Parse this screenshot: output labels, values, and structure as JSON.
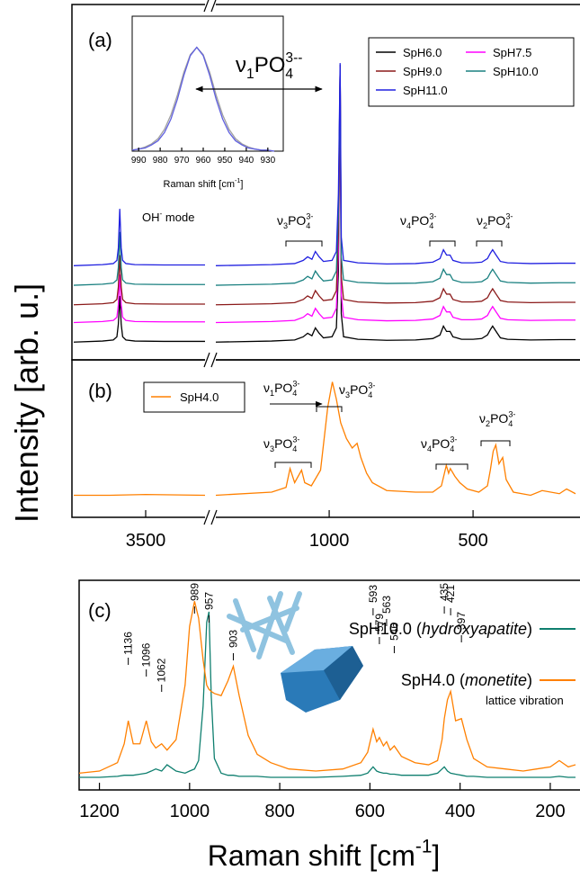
{
  "ylabel": "Intensity [arb. u.]",
  "chart_data": [
    {
      "type": "line",
      "panel_label": "(a)",
      "xlim_segments": [
        [
          3700,
          3335
        ],
        [
          1394,
          144
        ]
      ],
      "ylim": [
        0,
        100
      ],
      "x": [
        3700,
        3620,
        3590,
        3580,
        3576,
        3572,
        3568,
        3564,
        3555,
        3530,
        3450,
        3335,
        null,
        1394,
        1200,
        1120,
        1090,
        1075,
        1060,
        1048,
        1035,
        1020,
        990,
        975,
        968,
        962,
        958,
        950,
        900,
        800,
        700,
        640,
        615,
        603,
        592,
        580,
        570,
        540,
        500,
        470,
        450,
        440,
        432,
        420,
        405,
        380,
        300,
        200,
        144
      ],
      "series": [
        {
          "name": "SpH6.0",
          "color": "#000000",
          "values": [
            5,
            5.3,
            5.6,
            6.5,
            10,
            18,
            10,
            6.5,
            5.6,
            5.3,
            5.2,
            5.2,
            null,
            5,
            5.3,
            5.6,
            6.5,
            7.5,
            6.8,
            9,
            7.5,
            6.2,
            6.5,
            9,
            25,
            83,
            13,
            6.5,
            5.8,
            5.5,
            5.6,
            6,
            7,
            9.5,
            8,
            8,
            6.5,
            5.8,
            5.8,
            6,
            7,
            8.5,
            9.5,
            8,
            6.2,
            5.8,
            5.6,
            5.7,
            5.7
          ]
        },
        {
          "name": "SpH7.5",
          "color": "#ff00ff",
          "values": [
            10.5,
            10.8,
            11.1,
            12,
            15.5,
            24,
            15.5,
            12,
            11.1,
            10.8,
            10.7,
            10.7,
            null,
            10.5,
            10.8,
            11.1,
            12,
            13,
            12.3,
            14.5,
            13,
            11.7,
            12,
            14.5,
            30.5,
            82.5,
            18.5,
            12,
            11.3,
            11,
            11.1,
            11.5,
            12.5,
            15,
            13.5,
            13.5,
            12,
            11.3,
            11.3,
            11.5,
            12.5,
            14,
            15,
            13.5,
            11.7,
            11.3,
            11.1,
            11.2,
            11.2
          ]
        },
        {
          "name": "SpH9.0",
          "color": "#8b1a1a",
          "values": [
            15.5,
            15.8,
            16.1,
            17,
            20.5,
            29.5,
            20.5,
            17,
            16.1,
            15.8,
            15.7,
            15.7,
            null,
            15.5,
            15.8,
            16.1,
            17,
            18,
            17.3,
            19.5,
            18,
            16.7,
            17,
            19.5,
            35.5,
            82.5,
            23.5,
            17,
            16.3,
            16,
            16.1,
            16.5,
            17.5,
            20,
            18.5,
            18.5,
            17,
            16.3,
            16.3,
            16.5,
            17.5,
            19,
            20,
            18.5,
            16.7,
            16.3,
            16.1,
            16.2,
            16.2
          ]
        },
        {
          "name": "SpH10.0",
          "color": "#1a8080",
          "values": [
            21,
            21.3,
            21.6,
            22.5,
            26,
            36,
            26,
            22.5,
            21.6,
            21.3,
            21.2,
            21.2,
            null,
            21,
            21.3,
            21.6,
            22.5,
            23.5,
            22.8,
            25,
            23.5,
            22.2,
            22.5,
            25,
            41,
            82,
            29,
            22.5,
            21.8,
            21.5,
            21.6,
            22,
            23,
            25.5,
            24,
            24,
            22.5,
            21.8,
            21.8,
            22,
            23,
            24.5,
            25.5,
            24,
            22.2,
            21.8,
            21.6,
            21.7,
            21.7
          ]
        },
        {
          "name": "SpH11.0",
          "color": "#2020e0",
          "values": [
            26.5,
            26.8,
            27.1,
            28,
            31.5,
            42.5,
            31.5,
            28,
            27.1,
            26.8,
            26.7,
            26.7,
            null,
            26.5,
            26.8,
            27.1,
            28,
            29,
            28.3,
            30.5,
            29,
            27.7,
            28,
            30.5,
            46.5,
            83.5,
            34.5,
            28,
            27.3,
            27,
            27.1,
            27.5,
            28.5,
            31,
            29.5,
            29.5,
            28,
            27.3,
            27.3,
            27.5,
            28.5,
            30,
            31,
            29.5,
            27.7,
            27.3,
            27.1,
            27.2,
            27.2
          ]
        }
      ],
      "annotations": [
        [
          "ν",
          "1",
          "PO",
          "4",
          "3--"
        ],
        [
          "OH",
          "-",
          " mode"
        ],
        [
          "ν",
          "3",
          "PO",
          "4",
          "3-"
        ],
        [
          "ν",
          "4",
          "PO",
          "4",
          "3-"
        ],
        [
          "ν",
          "2",
          "PO",
          "4",
          "3-"
        ]
      ]
    },
    {
      "type": "line",
      "panel_label": "(b)",
      "xlim_segments": [
        [
          3700,
          3335
        ],
        [
          1394,
          144
        ]
      ],
      "ylim": [
        0,
        100
      ],
      "xticks": [
        3500,
        1000,
        500
      ],
      "x": [
        3700,
        3600,
        3500,
        3335,
        null,
        1394,
        1200,
        1150,
        1136,
        1120,
        1096,
        1085,
        1062,
        1030,
        1005,
        989,
        975,
        960,
        940,
        920,
        903,
        890,
        870,
        850,
        800,
        700,
        640,
        610,
        593,
        585,
        579,
        563,
        546,
        520,
        480,
        450,
        440,
        430,
        421,
        410,
        397,
        385,
        360,
        300,
        260,
        200,
        175,
        144
      ],
      "series": [
        {
          "name": "SpH4.0",
          "color": "#ff8000",
          "values": [
            14,
            14,
            14.5,
            14,
            null,
            14,
            16,
            19,
            31,
            22,
            30,
            22,
            20,
            30,
            70,
            86,
            75,
            60,
            50,
            44,
            47,
            38,
            28,
            22,
            17,
            16,
            16,
            20,
            33,
            28,
            31,
            26,
            22,
            18,
            16,
            20,
            30,
            42,
            46,
            34,
            38,
            24,
            16,
            14,
            17,
            15,
            18,
            15
          ]
        }
      ],
      "annotations": [
        [
          "ν",
          "1",
          "PO",
          "4",
          "3-"
        ],
        [
          "ν",
          "3",
          "PO",
          "4",
          "3-"
        ],
        [
          "ν",
          "3",
          "PO",
          "4",
          "3-"
        ],
        [
          "ν",
          "4",
          "PO",
          "4",
          "3-"
        ],
        [
          "ν",
          "2",
          "PO",
          "4",
          "3-"
        ]
      ]
    },
    {
      "type": "line",
      "xlim": [
        993,
        927
      ],
      "ylim": [
        0,
        1.3
      ],
      "xticks": [
        990,
        980,
        970,
        960,
        950,
        940,
        930
      ],
      "xlabel": [
        "Raman shift [cm",
        "-1",
        "]"
      ],
      "x": [
        993,
        990,
        987,
        984,
        981,
        978,
        975,
        972,
        969,
        966,
        963,
        960,
        957,
        954,
        951,
        948,
        945,
        942,
        939,
        936,
        933,
        930,
        927
      ],
      "series": [
        {
          "color": "#a0a0a0",
          "values": [
            0.01,
            0.02,
            0.04,
            0.07,
            0.12,
            0.21,
            0.35,
            0.54,
            0.76,
            0.93,
            1,
            0.93,
            0.76,
            0.54,
            0.35,
            0.21,
            0.12,
            0.07,
            0.04,
            0.02,
            0.01,
            0.01,
            0
          ]
        },
        {
          "color": "#6060e0",
          "values": [
            0.01,
            0.02,
            0.03,
            0.06,
            0.1,
            0.18,
            0.31,
            0.5,
            0.73,
            0.92,
            1,
            0.92,
            0.73,
            0.5,
            0.31,
            0.18,
            0.1,
            0.06,
            0.03,
            0.02,
            0.01,
            0.01,
            0
          ]
        }
      ]
    },
    {
      "type": "line",
      "panel_label": "(c)",
      "xlim": [
        1245,
        144
      ],
      "ylim": [
        0,
        100
      ],
      "xticks": [
        1200,
        1000,
        800,
        600,
        400,
        200
      ],
      "xlabel": [
        "Raman shift [cm",
        "-1",
        "]"
      ],
      "x": [
        1245,
        1200,
        1160,
        1145,
        1136,
        1125,
        1110,
        1096,
        1085,
        1075,
        1062,
        1050,
        1030,
        1010,
        1000,
        989,
        980,
        970,
        962,
        957,
        952,
        945,
        930,
        915,
        903,
        890,
        870,
        850,
        820,
        780,
        720,
        660,
        620,
        605,
        593,
        585,
        579,
        570,
        563,
        555,
        546,
        530,
        500,
        470,
        450,
        440,
        435,
        428,
        421,
        410,
        397,
        385,
        370,
        340,
        300,
        260,
        230,
        200,
        180,
        160,
        144
      ],
      "series": [
        {
          "name": "SpH10.0 (hydroxyapatite)",
          "color": "#0f7f6f",
          "values": [
            6,
            6,
            6.5,
            7,
            7,
            7,
            7.5,
            8,
            9,
            10,
            9,
            12,
            9,
            8,
            9,
            10,
            14,
            40,
            80,
            85,
            45,
            15,
            8,
            7,
            7,
            6.5,
            6.5,
            6.5,
            6,
            6,
            6,
            6.5,
            7,
            8,
            11,
            9,
            8.5,
            8,
            8,
            7.5,
            7.5,
            7,
            7,
            7,
            8,
            10,
            11,
            9,
            8,
            7.5,
            7,
            6.5,
            6.5,
            6,
            6,
            6,
            6,
            6,
            6.5,
            6,
            6
          ]
        },
        {
          "name": "SpH4.0 (monetite)",
          "color": "#ff8000",
          "values": [
            8,
            9,
            13,
            22,
            33,
            22,
            22,
            33,
            23,
            20,
            22,
            19,
            24,
            50,
            78,
            90,
            82,
            62,
            50,
            48,
            47,
            46,
            45,
            52,
            59,
            45,
            26,
            17,
            13,
            10,
            9,
            10,
            13,
            18,
            29,
            23,
            25,
            21,
            23,
            19,
            21,
            16,
            13,
            12,
            14,
            24,
            34,
            43,
            47,
            33,
            34,
            24,
            15,
            11,
            10,
            9,
            10,
            11,
            14,
            11,
            12
          ]
        }
      ],
      "peak_labels": [
        1136,
        1096,
        1062,
        989,
        957,
        903,
        593,
        579,
        563,
        546,
        435,
        421,
        397
      ],
      "annotations": [
        "lattice vibration"
      ]
    }
  ]
}
